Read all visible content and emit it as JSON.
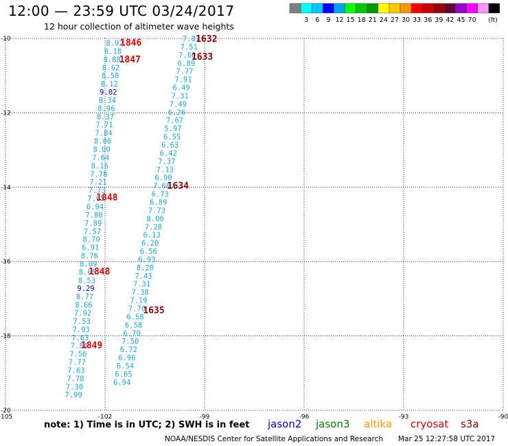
{
  "header": {
    "title": "12:00 — 23:59 UTC 03/24/2017",
    "subtitle": "12 hour collection of altimeter wave heights"
  },
  "colorbar": {
    "colors": [
      "#7f7f7f",
      "#00ffff",
      "#00c8ff",
      "#0000ff",
      "#00a0ff",
      "#00ff00",
      "#00c800",
      "#009600",
      "#ffff00",
      "#ffc800",
      "#ff9600",
      "#ff0000",
      "#c80000",
      "#960000",
      "#640032",
      "#9600c8",
      "#ff00ff",
      "#ff96ff",
      "#000000"
    ],
    "labels": [
      "3",
      "6",
      "9",
      "12",
      "15",
      "18",
      "21",
      "24",
      "27",
      "30",
      "33",
      "36",
      "39",
      "42",
      "45",
      "70"
    ],
    "unit": "(ft)"
  },
  "axes": {
    "lon_ticks": [
      "-105",
      "-102",
      "-99",
      "-96",
      "-93",
      "-90"
    ],
    "lat_ticks": [
      "-10",
      "-12",
      "-14",
      "-16",
      "-18",
      "-20"
    ],
    "lon_range": [
      -105,
      -90
    ],
    "lat_range": [
      -20,
      -10
    ]
  },
  "track1": {
    "color": "#1ba8dc",
    "readings": [
      {
        "lat": -10.12,
        "lon": -101.71,
        "v": "8.92"
      },
      {
        "lat": -10.34,
        "lon": -101.76,
        "v": "8.18"
      },
      {
        "lat": -10.56,
        "lon": -101.79,
        "v": "8.88"
      },
      {
        "lat": -10.78,
        "lon": -101.82,
        "v": "8.62"
      },
      {
        "lat": -11.0,
        "lon": -101.84,
        "v": "8.58"
      },
      {
        "lat": -11.22,
        "lon": -101.87,
        "v": "8.12"
      },
      {
        "lat": -11.44,
        "lon": -101.9,
        "v": "9.02",
        "c": "#0000c8"
      },
      {
        "lat": -11.66,
        "lon": -101.93,
        "v": "8.34"
      },
      {
        "lat": -11.88,
        "lon": -101.96,
        "v": "8.96"
      },
      {
        "lat": -12.1,
        "lon": -101.99,
        "v": "8.37"
      },
      {
        "lat": -12.32,
        "lon": -102.02,
        "v": "7.71"
      },
      {
        "lat": -12.54,
        "lon": -102.04,
        "v": "7.84"
      },
      {
        "lat": -12.76,
        "lon": -102.07,
        "v": "8.00"
      },
      {
        "lat": -12.98,
        "lon": -102.1,
        "v": "8.00"
      },
      {
        "lat": -13.2,
        "lon": -102.13,
        "v": "7.64"
      },
      {
        "lat": -13.42,
        "lon": -102.16,
        "v": "8.16"
      },
      {
        "lat": -13.64,
        "lon": -102.19,
        "v": "7.78"
      },
      {
        "lat": -13.86,
        "lon": -102.21,
        "v": "7.21"
      },
      {
        "lat": -14.08,
        "lon": -102.24,
        "v": "7.73"
      },
      {
        "lat": -14.3,
        "lon": -102.27,
        "v": "7.65"
      },
      {
        "lat": -14.52,
        "lon": -102.3,
        "v": "6.94"
      },
      {
        "lat": -14.74,
        "lon": -102.33,
        "v": "7.80"
      },
      {
        "lat": -14.96,
        "lon": -102.36,
        "v": "7.89"
      },
      {
        "lat": -15.18,
        "lon": -102.38,
        "v": "7.57"
      },
      {
        "lat": -15.4,
        "lon": -102.41,
        "v": "8.70"
      },
      {
        "lat": -15.62,
        "lon": -102.44,
        "v": "6.91"
      },
      {
        "lat": -15.84,
        "lon": -102.47,
        "v": "8.76"
      },
      {
        "lat": -16.06,
        "lon": -102.5,
        "v": "8.09"
      },
      {
        "lat": -16.28,
        "lon": -102.53,
        "v": "8.65"
      },
      {
        "lat": -16.5,
        "lon": -102.55,
        "v": "8.53"
      },
      {
        "lat": -16.72,
        "lon": -102.58,
        "v": "9.29",
        "c": "#0000c8"
      },
      {
        "lat": -16.94,
        "lon": -102.61,
        "v": "8.77"
      },
      {
        "lat": -17.16,
        "lon": -102.64,
        "v": "8.66"
      },
      {
        "lat": -17.38,
        "lon": -102.67,
        "v": "7.92"
      },
      {
        "lat": -17.6,
        "lon": -102.7,
        "v": "7.53"
      },
      {
        "lat": -17.82,
        "lon": -102.72,
        "v": "7.93"
      },
      {
        "lat": -18.04,
        "lon": -102.75,
        "v": "7.63"
      },
      {
        "lat": -18.26,
        "lon": -102.78,
        "v": "7.84"
      },
      {
        "lat": -18.48,
        "lon": -102.81,
        "v": "7.56"
      },
      {
        "lat": -18.7,
        "lon": -102.84,
        "v": "7.77"
      },
      {
        "lat": -18.92,
        "lon": -102.87,
        "v": "7.63"
      },
      {
        "lat": -19.14,
        "lon": -102.89,
        "v": "7.78"
      },
      {
        "lat": -19.36,
        "lon": -102.92,
        "v": "7.30"
      },
      {
        "lat": -19.58,
        "lon": -102.95,
        "v": "7.99"
      }
    ],
    "times": [
      {
        "lat": -10.1,
        "lon": -101.22,
        "v": "1846"
      },
      {
        "lat": -10.55,
        "lon": -101.25,
        "v": "1847"
      },
      {
        "lat": -14.26,
        "lon": -101.94,
        "v": "1848"
      },
      {
        "lat": -16.25,
        "lon": -102.17,
        "v": "1848"
      },
      {
        "lat": -18.24,
        "lon": -102.4,
        "v": "1849"
      }
    ],
    "time_color": "#e80000"
  },
  "track2": {
    "color": "#1ba8dc",
    "readings": [
      {
        "lat": -10.0,
        "lon": -99.4,
        "v": "7.87"
      },
      {
        "lat": -10.22,
        "lon": -99.47,
        "v": "7.51"
      },
      {
        "lat": -10.44,
        "lon": -99.52,
        "v": "7.60"
      },
      {
        "lat": -10.66,
        "lon": -99.55,
        "v": "6.89"
      },
      {
        "lat": -10.88,
        "lon": -99.6,
        "v": "7.77"
      },
      {
        "lat": -11.1,
        "lon": -99.64,
        "v": "7.91"
      },
      {
        "lat": -11.32,
        "lon": -99.7,
        "v": "6.49"
      },
      {
        "lat": -11.54,
        "lon": -99.74,
        "v": "7.31"
      },
      {
        "lat": -11.76,
        "lon": -99.8,
        "v": "7.49"
      },
      {
        "lat": -11.98,
        "lon": -99.84,
        "v": "6.26"
      },
      {
        "lat": -12.2,
        "lon": -99.9,
        "v": "7.67"
      },
      {
        "lat": -12.42,
        "lon": -99.95,
        "v": "5.97"
      },
      {
        "lat": -12.64,
        "lon": -99.98,
        "v": "6.55"
      },
      {
        "lat": -12.86,
        "lon": -100.04,
        "v": "6.63"
      },
      {
        "lat": -13.08,
        "lon": -100.09,
        "v": "6.42"
      },
      {
        "lat": -13.3,
        "lon": -100.14,
        "v": "7.37"
      },
      {
        "lat": -13.52,
        "lon": -100.19,
        "v": "7.13"
      },
      {
        "lat": -13.74,
        "lon": -100.24,
        "v": "6.90"
      },
      {
        "lat": -13.96,
        "lon": -100.29,
        "v": "7.68"
      },
      {
        "lat": -14.18,
        "lon": -100.34,
        "v": "6.73"
      },
      {
        "lat": -14.4,
        "lon": -100.39,
        "v": "6.89"
      },
      {
        "lat": -14.62,
        "lon": -100.44,
        "v": "7.73"
      },
      {
        "lat": -14.84,
        "lon": -100.49,
        "v": "8.00"
      },
      {
        "lat": -15.06,
        "lon": -100.54,
        "v": "7.28"
      },
      {
        "lat": -15.28,
        "lon": -100.59,
        "v": "6.13"
      },
      {
        "lat": -15.5,
        "lon": -100.64,
        "v": "6.20"
      },
      {
        "lat": -15.72,
        "lon": -100.69,
        "v": "6.56"
      },
      {
        "lat": -15.94,
        "lon": -100.74,
        "v": "6.93"
      },
      {
        "lat": -16.16,
        "lon": -100.79,
        "v": "8.20"
      },
      {
        "lat": -16.38,
        "lon": -100.84,
        "v": "7.43"
      },
      {
        "lat": -16.6,
        "lon": -100.89,
        "v": "7.31"
      },
      {
        "lat": -16.82,
        "lon": -100.94,
        "v": "7.38"
      },
      {
        "lat": -17.04,
        "lon": -100.99,
        "v": "7.19"
      },
      {
        "lat": -17.26,
        "lon": -101.04,
        "v": "7.70"
      },
      {
        "lat": -17.48,
        "lon": -101.09,
        "v": "6.58"
      },
      {
        "lat": -17.7,
        "lon": -101.14,
        "v": "6.58"
      },
      {
        "lat": -17.92,
        "lon": -101.19,
        "v": "6.70"
      },
      {
        "lat": -18.14,
        "lon": -101.24,
        "v": "7.50"
      },
      {
        "lat": -18.36,
        "lon": -101.29,
        "v": "6.72"
      },
      {
        "lat": -18.58,
        "lon": -101.34,
        "v": "6.96"
      },
      {
        "lat": -18.8,
        "lon": -101.39,
        "v": "6.54"
      },
      {
        "lat": -19.02,
        "lon": -101.44,
        "v": "6.65"
      },
      {
        "lat": -19.24,
        "lon": -101.49,
        "v": "6.94"
      }
    ],
    "times": [
      {
        "lat": -10.0,
        "lon": -98.94,
        "v": "1632"
      },
      {
        "lat": -10.48,
        "lon": -99.07,
        "v": "1633"
      },
      {
        "lat": -13.95,
        "lon": -99.8,
        "v": "1634"
      },
      {
        "lat": -17.3,
        "lon": -100.53,
        "v": "1635"
      }
    ],
    "time_color": "#8b0000"
  },
  "note": "note:  1) Time is in UTC; 2) SWH is in feet",
  "legend": [
    {
      "label": "jason2",
      "color": "#0000e0"
    },
    {
      "label": "jason3",
      "color": "#008000"
    },
    {
      "label": "altika",
      "color": "#ff9900"
    },
    {
      "label": "cryosat",
      "color": "#e00000"
    },
    {
      "label": "s3a",
      "color": "#8b0000"
    }
  ],
  "footer": {
    "credit": "NOAA/NESDIS Center for Satellite Applications and Research",
    "timestamp": "Mar 25 12:27:58 UTC 2017"
  }
}
